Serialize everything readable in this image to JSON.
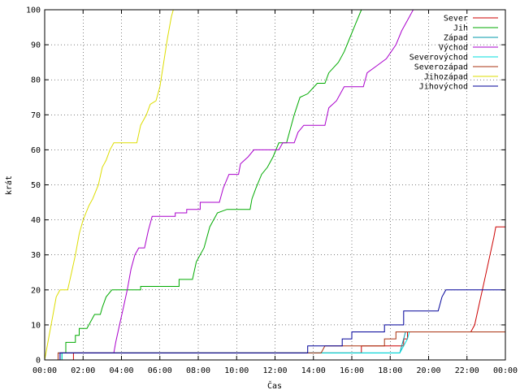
{
  "chart_data": {
    "type": "line",
    "xlabel": "Čas",
    "ylabel": "krát",
    "xlim": [
      0,
      24
    ],
    "ylim": [
      0,
      100
    ],
    "grid": true,
    "legend_position": "top-right",
    "x_ticks": [
      "00:00",
      "02:00",
      "04:00",
      "06:00",
      "08:00",
      "10:00",
      "12:00",
      "14:00",
      "16:00",
      "18:00",
      "20:00",
      "22:00",
      "00:00"
    ],
    "y_ticks": [
      0,
      10,
      20,
      30,
      40,
      50,
      60,
      70,
      80,
      90,
      100
    ],
    "series": [
      {
        "name": "Sever",
        "color": "#cc0000",
        "points": [
          [
            0,
            0
          ],
          [
            1.5,
            0
          ],
          [
            1.5,
            2
          ],
          [
            13.7,
            2
          ],
          [
            13.7,
            2
          ],
          [
            16.5,
            2
          ],
          [
            16.5,
            4
          ],
          [
            18.7,
            4
          ],
          [
            18.7,
            6
          ],
          [
            18.9,
            6
          ],
          [
            18.9,
            8
          ],
          [
            22.2,
            8
          ],
          [
            22.4,
            10
          ],
          [
            22.6,
            15
          ],
          [
            22.8,
            20
          ],
          [
            23.0,
            25
          ],
          [
            23.2,
            30
          ],
          [
            23.4,
            35
          ],
          [
            23.5,
            38
          ],
          [
            24,
            38
          ]
        ]
      },
      {
        "name": "Jih",
        "color": "#00aa00",
        "points": [
          [
            0,
            0
          ],
          [
            0.9,
            0
          ],
          [
            0.9,
            2
          ],
          [
            1.1,
            2
          ],
          [
            1.1,
            5
          ],
          [
            1.6,
            5
          ],
          [
            1.6,
            7
          ],
          [
            1.8,
            7
          ],
          [
            1.8,
            9
          ],
          [
            2.2,
            9
          ],
          [
            2.4,
            11
          ],
          [
            2.6,
            13
          ],
          [
            2.9,
            13
          ],
          [
            3.0,
            15
          ],
          [
            3.2,
            18
          ],
          [
            3.5,
            20
          ],
          [
            5.0,
            20
          ],
          [
            5.0,
            21
          ],
          [
            7.0,
            21
          ],
          [
            7.0,
            23
          ],
          [
            7.7,
            23
          ],
          [
            7.9,
            28
          ],
          [
            8.3,
            32
          ],
          [
            8.6,
            38
          ],
          [
            9.0,
            42
          ],
          [
            9.5,
            43
          ],
          [
            10.7,
            43
          ],
          [
            10.8,
            46
          ],
          [
            11.0,
            49
          ],
          [
            11.3,
            53
          ],
          [
            11.6,
            55
          ],
          [
            11.9,
            58
          ],
          [
            12.2,
            62
          ],
          [
            12.6,
            62
          ],
          [
            12.8,
            66
          ],
          [
            13.0,
            70
          ],
          [
            13.3,
            75
          ],
          [
            13.7,
            76
          ],
          [
            14.2,
            79
          ],
          [
            14.6,
            79
          ],
          [
            14.8,
            82
          ],
          [
            15.3,
            85
          ],
          [
            15.6,
            88
          ],
          [
            15.9,
            92
          ],
          [
            16.2,
            96
          ],
          [
            16.5,
            100
          ]
        ]
      },
      {
        "name": "Západ",
        "color": "#0099aa",
        "points": [
          [
            0,
            0
          ],
          [
            0.7,
            0
          ],
          [
            0.7,
            2
          ],
          [
            18.5,
            2
          ],
          [
            18.6,
            4
          ],
          [
            18.7,
            6
          ],
          [
            18.8,
            8
          ]
        ]
      },
      {
        "name": "Východ",
        "color": "#aa00cc",
        "points": [
          [
            0,
            0
          ],
          [
            0.8,
            0
          ],
          [
            0.8,
            2
          ],
          [
            3.6,
            2
          ],
          [
            3.7,
            5
          ],
          [
            3.9,
            10
          ],
          [
            4.1,
            15
          ],
          [
            4.3,
            20
          ],
          [
            4.5,
            26
          ],
          [
            4.7,
            30
          ],
          [
            4.9,
            32
          ],
          [
            5.2,
            32
          ],
          [
            5.4,
            37
          ],
          [
            5.6,
            41
          ],
          [
            6.8,
            41
          ],
          [
            6.8,
            42
          ],
          [
            7.4,
            42
          ],
          [
            7.4,
            43
          ],
          [
            8.1,
            43
          ],
          [
            8.1,
            45
          ],
          [
            9.1,
            45
          ],
          [
            9.3,
            49
          ],
          [
            9.6,
            53
          ],
          [
            10.1,
            53
          ],
          [
            10.2,
            56
          ],
          [
            10.6,
            58
          ],
          [
            10.9,
            60
          ],
          [
            12.2,
            60
          ],
          [
            12.4,
            62
          ],
          [
            13.0,
            62
          ],
          [
            13.2,
            65
          ],
          [
            13.5,
            67
          ],
          [
            14.6,
            67
          ],
          [
            14.8,
            72
          ],
          [
            15.2,
            74
          ],
          [
            15.6,
            78
          ],
          [
            16.6,
            78
          ],
          [
            16.8,
            82
          ],
          [
            17.3,
            84
          ],
          [
            17.8,
            86
          ],
          [
            18.3,
            90
          ],
          [
            18.6,
            94
          ],
          [
            19.0,
            98
          ],
          [
            19.2,
            100
          ]
        ]
      },
      {
        "name": "Severovýchod",
        "color": "#00dddd",
        "points": [
          [
            0,
            0
          ],
          [
            0.9,
            0
          ],
          [
            0.9,
            2
          ],
          [
            16.2,
            2
          ],
          [
            16.3,
            2
          ],
          [
            18.5,
            2
          ],
          [
            18.7,
            4
          ],
          [
            18.9,
            6
          ],
          [
            19.0,
            8
          ]
        ]
      },
      {
        "name": "Severozápad",
        "color": "#aa3311",
        "points": [
          [
            0,
            0
          ],
          [
            0.7,
            0
          ],
          [
            0.7,
            2
          ],
          [
            14.4,
            2
          ],
          [
            14.6,
            4
          ],
          [
            17.7,
            4
          ],
          [
            17.7,
            6
          ],
          [
            18.3,
            6
          ],
          [
            18.3,
            8
          ],
          [
            24,
            8
          ]
        ]
      },
      {
        "name": "Jihozápad",
        "color": "#dddd00",
        "points": [
          [
            0,
            0
          ],
          [
            0.2,
            6
          ],
          [
            0.4,
            12
          ],
          [
            0.6,
            18
          ],
          [
            0.8,
            20
          ],
          [
            1.2,
            20
          ],
          [
            1.4,
            25
          ],
          [
            1.6,
            30
          ],
          [
            1.8,
            36
          ],
          [
            2.0,
            40
          ],
          [
            2.3,
            44
          ],
          [
            2.5,
            46
          ],
          [
            2.8,
            50
          ],
          [
            3.0,
            55
          ],
          [
            3.2,
            57
          ],
          [
            3.4,
            60
          ],
          [
            3.6,
            62
          ],
          [
            4.8,
            62
          ],
          [
            5.0,
            67
          ],
          [
            5.3,
            70
          ],
          [
            5.5,
            73
          ],
          [
            5.8,
            74
          ],
          [
            6.0,
            78
          ],
          [
            6.2,
            85
          ],
          [
            6.4,
            92
          ],
          [
            6.6,
            98
          ],
          [
            6.7,
            100
          ]
        ]
      },
      {
        "name": "Jihovýchod",
        "color": "#000099",
        "points": [
          [
            0,
            0
          ],
          [
            0.8,
            0
          ],
          [
            0.8,
            2
          ],
          [
            13.7,
            2
          ],
          [
            13.7,
            4
          ],
          [
            15.5,
            4
          ],
          [
            15.5,
            6
          ],
          [
            16.0,
            6
          ],
          [
            16.0,
            8
          ],
          [
            17.7,
            8
          ],
          [
            17.7,
            10
          ],
          [
            18.7,
            10
          ],
          [
            18.7,
            14
          ],
          [
            20.5,
            14
          ],
          [
            20.7,
            18
          ],
          [
            20.9,
            20
          ],
          [
            24,
            20
          ]
        ]
      }
    ]
  }
}
